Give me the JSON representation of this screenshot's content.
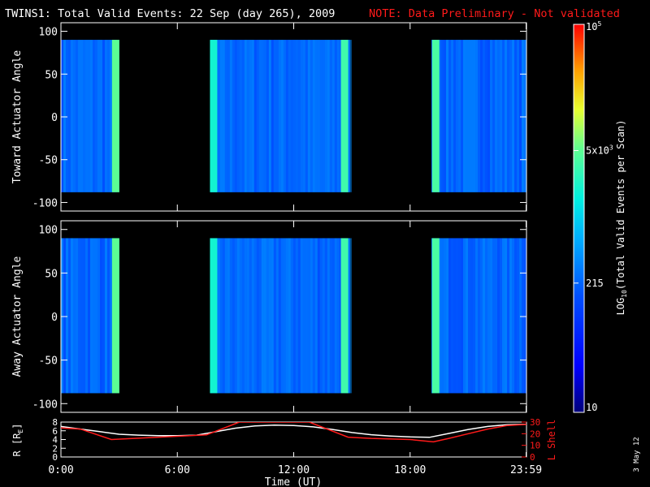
{
  "header": {
    "title": "TWINS1: Total Valid Events: 22 Sep (day 265), 2009",
    "note": "NOTE: Data Preliminary - Not validated",
    "note_color": "#ff1a1a"
  },
  "stamp": "3 May 12",
  "colorbar": {
    "label": "LOG10(Total Valid Events per Scan)",
    "label_parts": [
      "LOG",
      "10",
      "(Total Valid Events per Scan)"
    ],
    "tick_labels": [
      {
        "base": "10",
        "sup": "5",
        "value": 100000
      },
      {
        "base": "5x10",
        "sup": "3",
        "value": 5000
      },
      {
        "base": "215",
        "sup": "",
        "value": 215
      },
      {
        "base": "10",
        "sup": "",
        "value": 10
      }
    ],
    "scale": "log",
    "range": [
      10,
      100000
    ],
    "colormap": "rainbow (blue to red)"
  },
  "chart_data": [
    {
      "type": "heatmap",
      "panel": "toward",
      "ylabel": "Toward Actuator Angle",
      "ylim": [
        -110,
        110
      ],
      "yticks": [
        100,
        50,
        0,
        -50,
        -100
      ],
      "x_units": "hours UT",
      "xlim": [
        0,
        24
      ],
      "angle_range": [
        -88,
        90
      ],
      "data_segments": [
        {
          "start": 0.0,
          "end": 2.9
        },
        {
          "start": 7.7,
          "end": 14.9
        },
        {
          "start": 19.1,
          "end": 24.0
        }
      ],
      "typical_level": 215,
      "bright_stripes": [
        {
          "time": 2.8,
          "value": 5000
        },
        {
          "time": 7.85,
          "value": 2000
        },
        {
          "time": 14.6,
          "value": 3500
        },
        {
          "time": 19.3,
          "value": 4000
        }
      ]
    },
    {
      "type": "heatmap",
      "panel": "away",
      "ylabel": "Away Actuator Angle",
      "ylim": [
        -110,
        110
      ],
      "yticks": [
        100,
        50,
        0,
        -50,
        -100
      ],
      "x_units": "hours UT",
      "xlim": [
        0,
        24
      ],
      "angle_range": [
        -88,
        90
      ],
      "data_segments": [
        {
          "start": 0.0,
          "end": 2.9
        },
        {
          "start": 7.7,
          "end": 14.9
        },
        {
          "start": 19.1,
          "end": 24.0
        }
      ],
      "typical_level": 215,
      "bright_stripes": [
        {
          "time": 2.8,
          "value": 5000
        },
        {
          "time": 7.85,
          "value": 2000
        },
        {
          "time": 14.6,
          "value": 3500
        },
        {
          "time": 19.3,
          "value": 4000
        }
      ]
    },
    {
      "type": "line",
      "panel": "orbit",
      "xlabel": "Time (UT)",
      "xticks": [
        {
          "value": 0,
          "label": "0:00"
        },
        {
          "value": 6,
          "label": "6:00"
        },
        {
          "value": 12,
          "label": "12:00"
        },
        {
          "value": 18,
          "label": "18:00"
        },
        {
          "value": 23.98,
          "label": "23:59"
        }
      ],
      "ylabel_left": "R [RE]",
      "ylabel_left_parts": [
        "R [R",
        "E",
        "]"
      ],
      "ylim_left": [
        0,
        8
      ],
      "yticks_left": [
        0,
        2,
        4,
        6,
        8
      ],
      "ylabel_right": "L Shell",
      "ylim_right": [
        0,
        30
      ],
      "yticks_right": [
        0,
        10,
        20,
        30
      ],
      "series": [
        {
          "name": "R [RE]",
          "color": "#ffffff",
          "axis": "left",
          "x": [
            0,
            1,
            2,
            3,
            4,
            5,
            6,
            7,
            8,
            9,
            10,
            11,
            12,
            13,
            14,
            15,
            16,
            17,
            18,
            19,
            20,
            21,
            22,
            23,
            24
          ],
          "y": [
            7.0,
            6.4,
            5.8,
            5.2,
            5.0,
            4.9,
            4.9,
            5.0,
            5.8,
            6.6,
            7.1,
            7.3,
            7.2,
            6.9,
            6.3,
            5.6,
            5.1,
            4.8,
            4.6,
            4.5,
            5.4,
            6.3,
            7.0,
            7.4,
            7.5
          ]
        },
        {
          "name": "L Shell",
          "color": "#ff1a1a",
          "axis": "right",
          "x": [
            0,
            1,
            2.6,
            7.5,
            9.2,
            12.8,
            14.8,
            16,
            18,
            19.2,
            20,
            21,
            22,
            23,
            24
          ],
          "y": [
            25,
            24,
            15,
            19,
            30,
            30,
            17,
            16,
            15,
            13,
            16,
            20,
            24,
            27,
            28
          ]
        }
      ]
    }
  ]
}
